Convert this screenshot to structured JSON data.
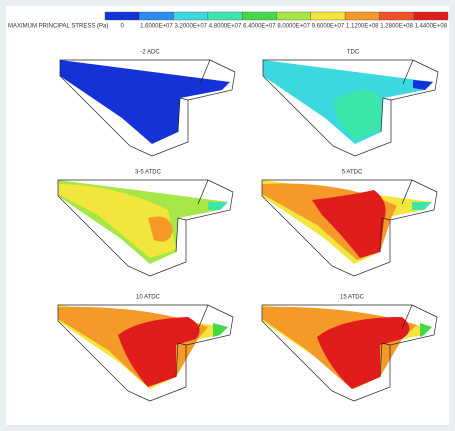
{
  "colorbar": {
    "title": "MAXIMUM PRINCIPAL STRESS (Pa)",
    "labels": [
      "0",
      "1.6000E+07",
      "3.2000E+07",
      "4.8000E+07",
      "6.4000E+07",
      "8.0000E+07",
      "9.6000E+07",
      "1.1200E+08",
      "1.2800E+08",
      "1.4400E+08"
    ],
    "colors": [
      "#1432d8",
      "#2a8ef0",
      "#3cd8e0",
      "#3ce6a8",
      "#46d84a",
      "#a6e646",
      "#f2e63c",
      "#f59a28",
      "#f0502a",
      "#e11c1c"
    ]
  },
  "panels": [
    {
      "label": "-2 ADC"
    },
    {
      "label": "TDC"
    },
    {
      "label": "3-5 ATDC"
    },
    {
      "label": "5 ATDC"
    },
    {
      "label": "10 ATDC"
    },
    {
      "label": "15 ATDC"
    }
  ]
}
